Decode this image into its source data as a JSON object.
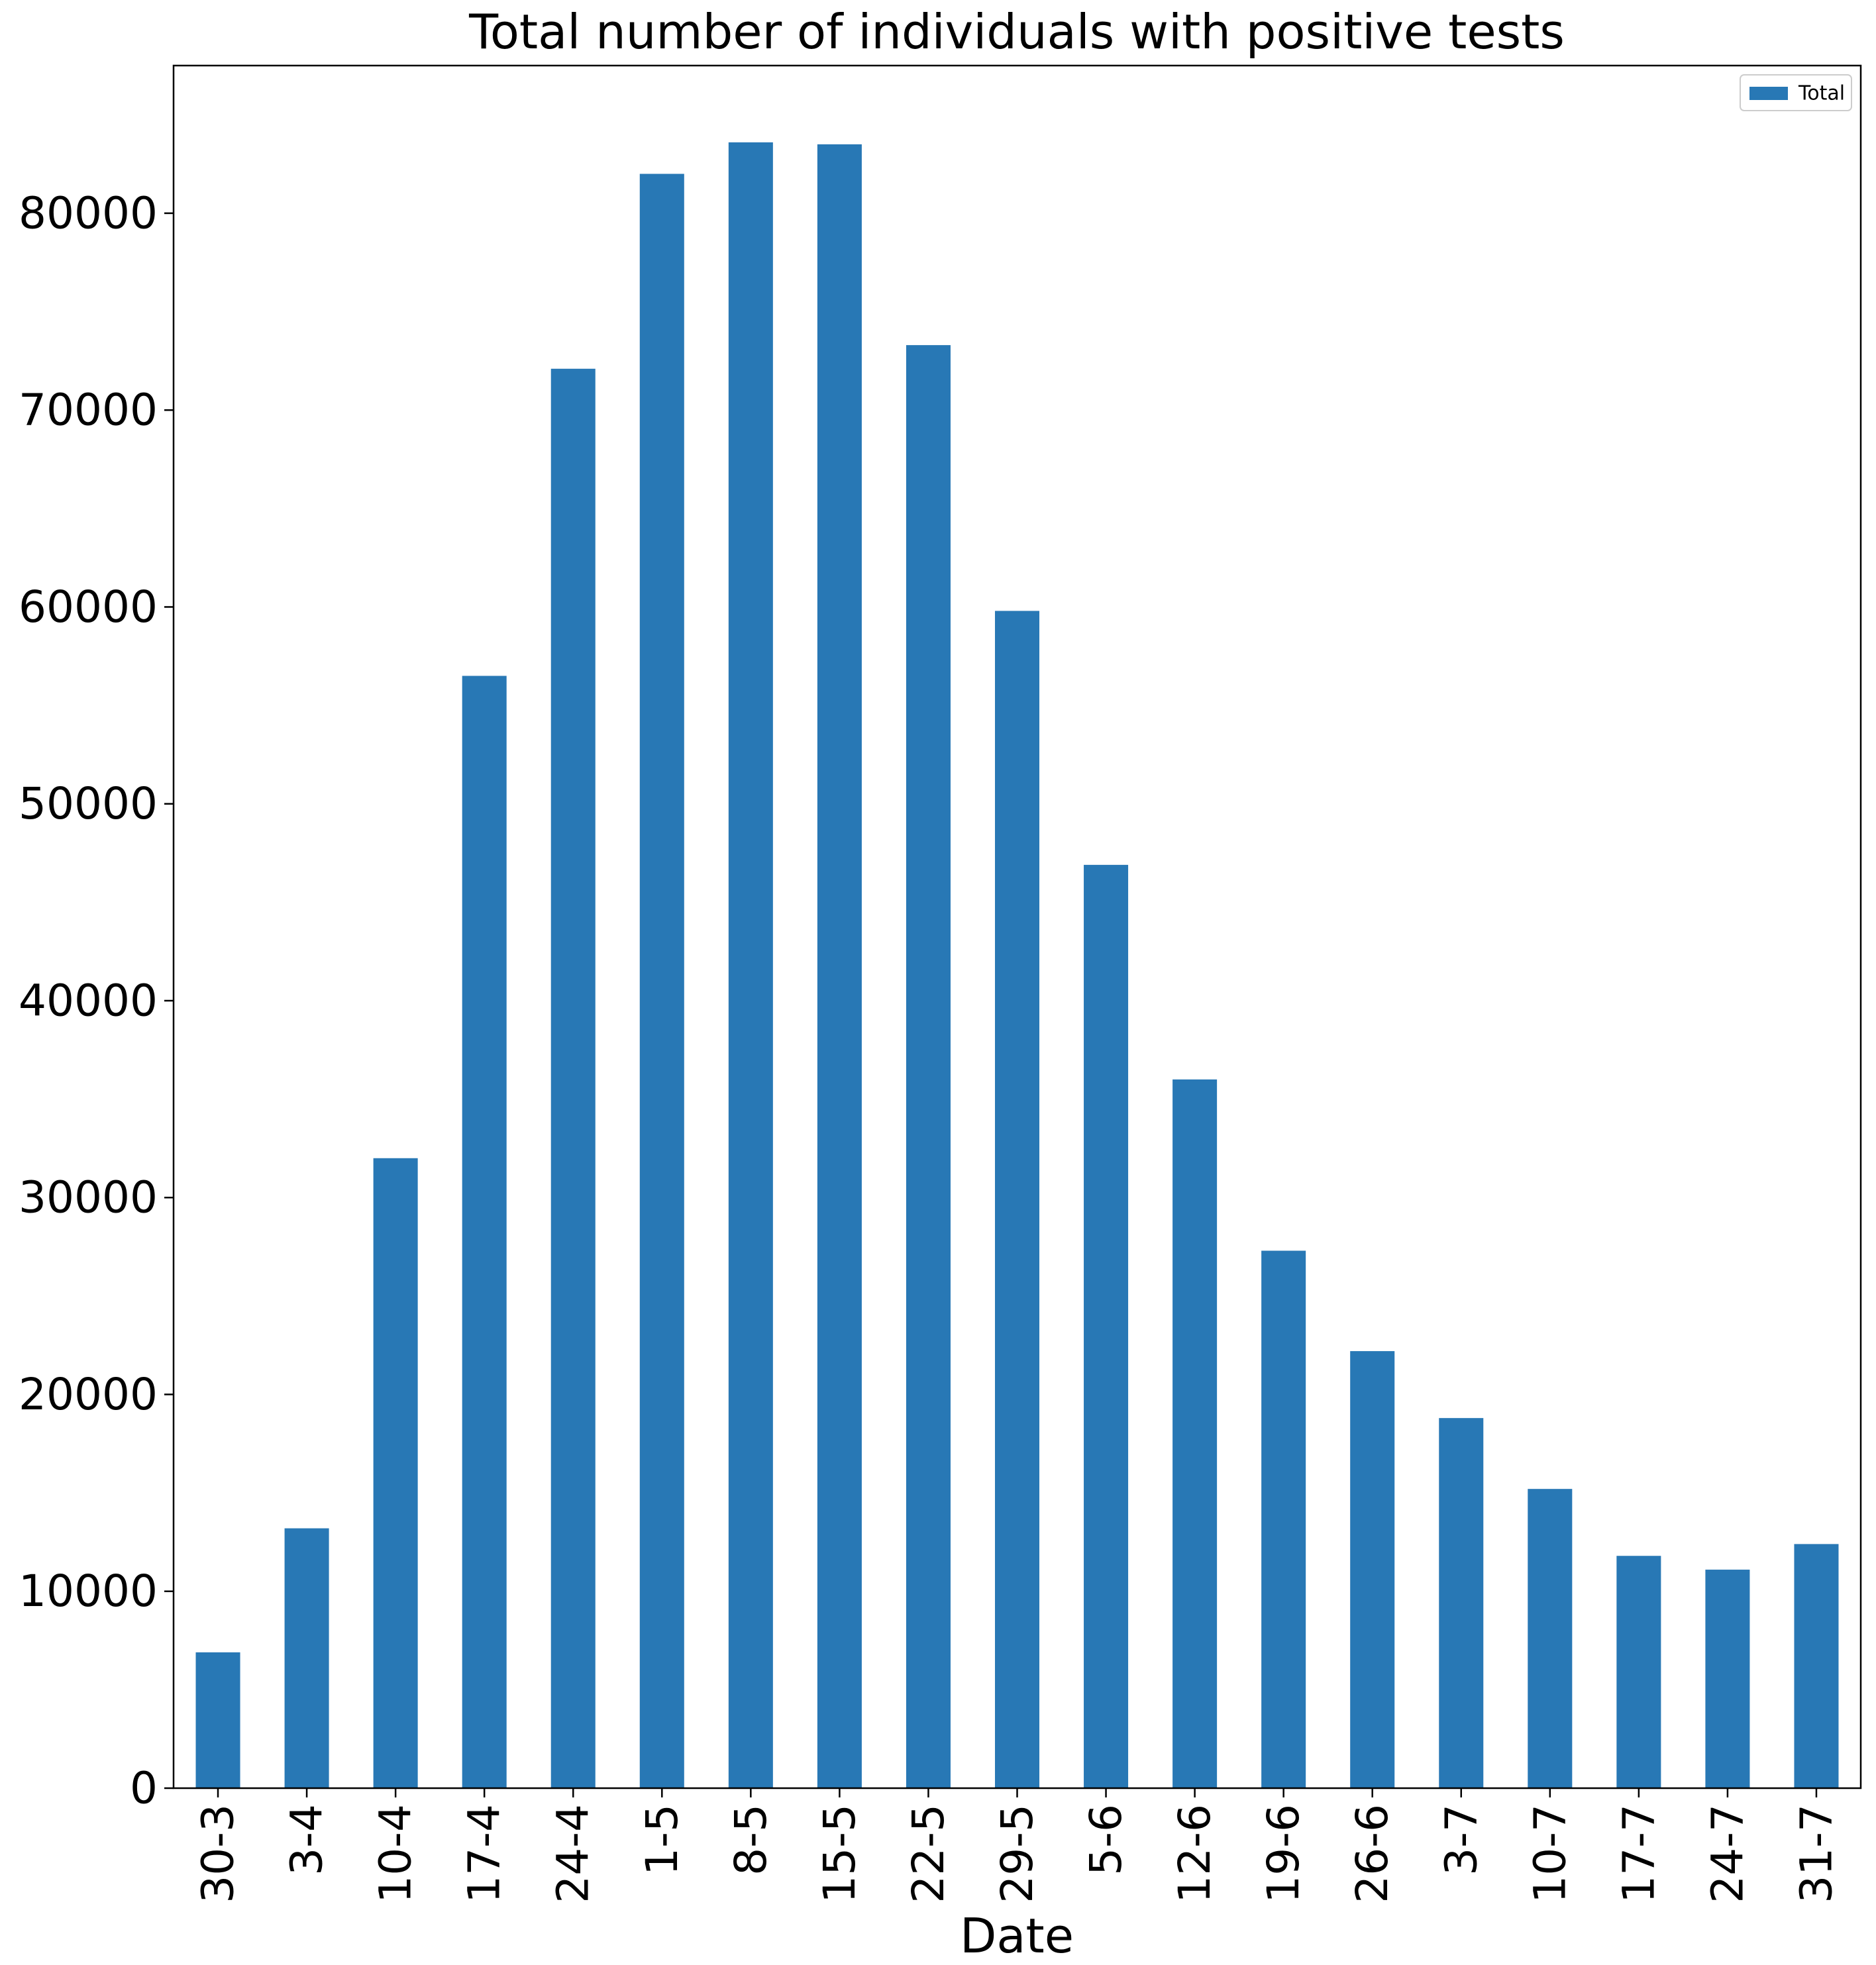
{
  "chart_data": {
    "type": "bar",
    "title": "Total number of individuals with positive tests",
    "xlabel": "Date",
    "ylabel": "",
    "categories": [
      "30-3",
      "3-4",
      "10-4",
      "17-4",
      "24-4",
      "1-5",
      "8-5",
      "15-5",
      "22-5",
      "29-5",
      "5-6",
      "12-6",
      "19-6",
      "26-6",
      "3-7",
      "10-7",
      "17-7",
      "24-7",
      "31-7"
    ],
    "series": [
      {
        "name": "Total",
        "color": "#2878b5",
        "values": [
          6900,
          13200,
          32000,
          56500,
          72100,
          82000,
          83600,
          83500,
          73300,
          59800,
          46900,
          36000,
          27300,
          22200,
          18800,
          15200,
          11800,
          11100,
          12400
        ]
      }
    ],
    "ylim": [
      0,
      87500
    ],
    "yticks": [
      0,
      10000,
      20000,
      30000,
      40000,
      50000,
      60000,
      70000,
      80000
    ],
    "grid": false,
    "legend": {
      "position": "top-right",
      "entries": [
        "Total"
      ]
    }
  }
}
